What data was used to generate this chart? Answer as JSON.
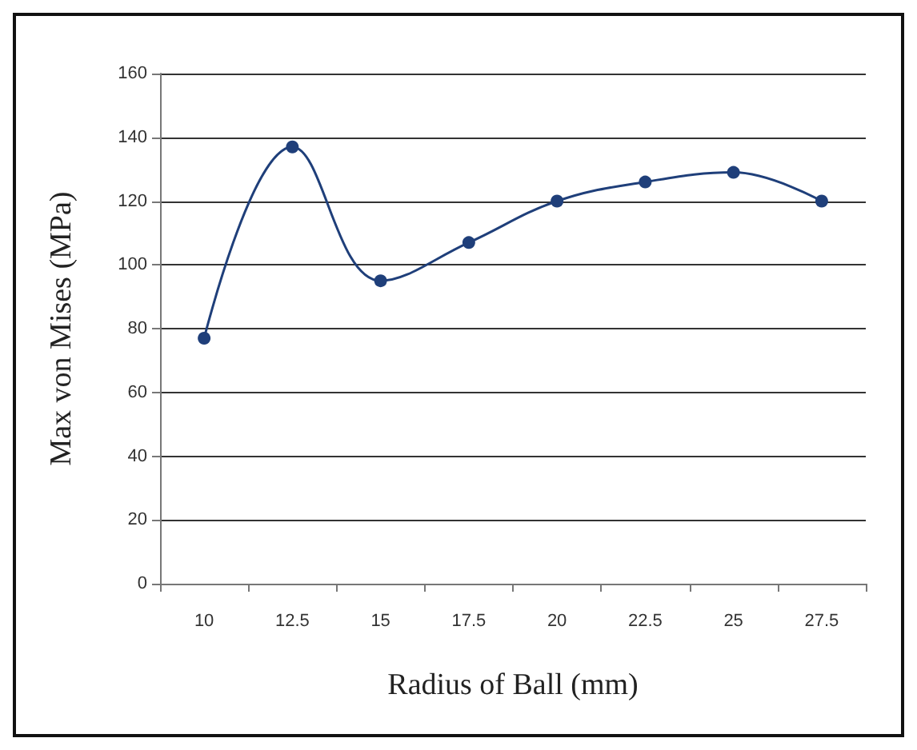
{
  "chart_data": {
    "type": "line",
    "xlabel": "Radius of Ball (mm)",
    "ylabel": "Max von Mises (MPa)",
    "categories": [
      "10",
      "12.5",
      "15",
      "17.5",
      "20",
      "22.5",
      "25",
      "27.5"
    ],
    "series": [
      {
        "color": "#1f3f7a",
        "values": [
          77,
          137,
          95,
          107,
          120,
          126,
          129,
          120
        ]
      }
    ],
    "ylim": [
      0,
      160
    ],
    "yticks": [
      0,
      20,
      40,
      60,
      80,
      100,
      120,
      140,
      160
    ],
    "grid": "y",
    "marker": "circle",
    "line_style": "solid"
  }
}
